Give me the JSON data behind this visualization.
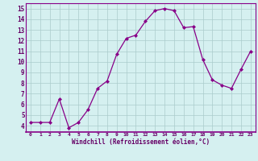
{
  "x": [
    0,
    1,
    2,
    3,
    4,
    5,
    6,
    7,
    8,
    9,
    10,
    11,
    12,
    13,
    14,
    15,
    16,
    17,
    18,
    19,
    20,
    21,
    22,
    23
  ],
  "y": [
    4.3,
    4.3,
    4.3,
    6.5,
    3.8,
    4.3,
    5.5,
    7.5,
    8.2,
    10.7,
    12.2,
    12.5,
    13.8,
    14.8,
    15.0,
    14.8,
    13.2,
    13.3,
    10.2,
    8.3,
    7.8,
    7.5,
    9.3,
    11.0
  ],
  "xlim": [
    -0.5,
    23.5
  ],
  "ylim": [
    3.4,
    15.5
  ],
  "yticks": [
    4,
    5,
    6,
    7,
    8,
    9,
    10,
    11,
    12,
    13,
    14,
    15
  ],
  "xticks": [
    0,
    1,
    2,
    3,
    4,
    5,
    6,
    7,
    8,
    9,
    10,
    11,
    12,
    13,
    14,
    15,
    16,
    17,
    18,
    19,
    20,
    21,
    22,
    23
  ],
  "xlabel": "Windchill (Refroidissement éolien,°C)",
  "line_color": "#880088",
  "marker_color": "#880088",
  "bg_color": "#d5f0f0",
  "grid_color": "#aacccc",
  "tick_label_color": "#660066",
  "xlabel_color": "#660066",
  "spine_color": "#880088"
}
